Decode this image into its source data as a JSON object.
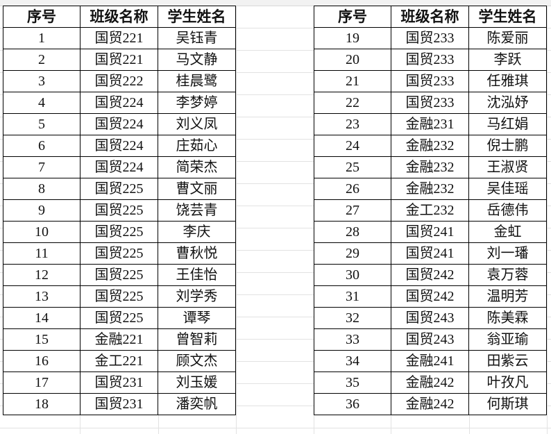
{
  "headers": [
    "序号",
    "班级名称",
    "学生姓名"
  ],
  "left_rows": [
    [
      "1",
      "国贸221",
      "吴钰青"
    ],
    [
      "2",
      "国贸221",
      "马文静"
    ],
    [
      "3",
      "国贸222",
      "桂晨鹭"
    ],
    [
      "4",
      "国贸224",
      "李梦婷"
    ],
    [
      "5",
      "国贸224",
      "刘义凤"
    ],
    [
      "6",
      "国贸224",
      "庄茹心"
    ],
    [
      "7",
      "国贸224",
      "简荣杰"
    ],
    [
      "8",
      "国贸225",
      "曹文丽"
    ],
    [
      "9",
      "国贸225",
      "饶芸青"
    ],
    [
      "10",
      "国贸225",
      "李庆"
    ],
    [
      "11",
      "国贸225",
      "曹秋悦"
    ],
    [
      "12",
      "国贸225",
      "王佳怡"
    ],
    [
      "13",
      "国贸225",
      "刘学秀"
    ],
    [
      "14",
      "国贸225",
      "谭琴"
    ],
    [
      "15",
      "金融221",
      "曾智莉"
    ],
    [
      "16",
      "金工221",
      "顾文杰"
    ],
    [
      "17",
      "国贸231",
      "刘玉媛"
    ],
    [
      "18",
      "国贸231",
      "潘奕帆"
    ]
  ],
  "right_rows": [
    [
      "19",
      "国贸233",
      "陈爱丽"
    ],
    [
      "20",
      "国贸233",
      "李跃"
    ],
    [
      "21",
      "国贸233",
      "任雅琪"
    ],
    [
      "22",
      "国贸233",
      "沈泓妤"
    ],
    [
      "23",
      "金融231",
      "马红娟"
    ],
    [
      "24",
      "金融232",
      "倪士鹏"
    ],
    [
      "25",
      "金融232",
      "王淑贤"
    ],
    [
      "26",
      "金融232",
      "吴佳瑶"
    ],
    [
      "27",
      "金工232",
      "岳德伟"
    ],
    [
      "28",
      "国贸241",
      "金虹"
    ],
    [
      "29",
      "国贸241",
      "刘一璠"
    ],
    [
      "30",
      "国贸242",
      "袁万蓉"
    ],
    [
      "31",
      "国贸242",
      "温明芳"
    ],
    [
      "32",
      "国贸243",
      "陈美霖"
    ],
    [
      "33",
      "国贸243",
      "翁亚瑜"
    ],
    [
      "34",
      "金融241",
      "田紫云"
    ],
    [
      "35",
      "金融242",
      "叶孜凡"
    ],
    [
      "36",
      "金融242",
      "何斯琪"
    ]
  ]
}
